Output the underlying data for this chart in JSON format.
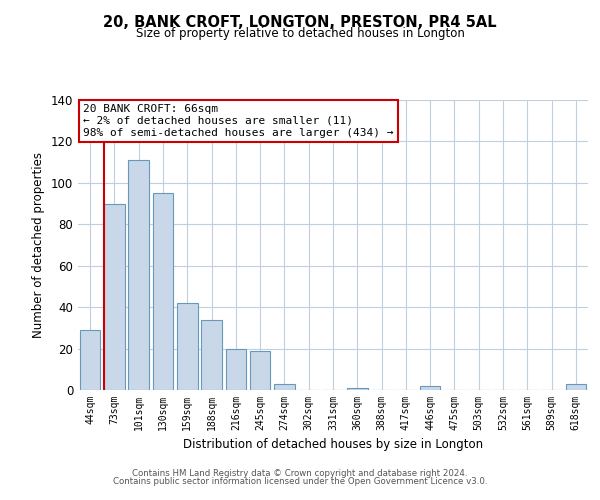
{
  "title": "20, BANK CROFT, LONGTON, PRESTON, PR4 5AL",
  "subtitle": "Size of property relative to detached houses in Longton",
  "xlabel": "Distribution of detached houses by size in Longton",
  "ylabel": "Number of detached properties",
  "bar_labels": [
    "44sqm",
    "73sqm",
    "101sqm",
    "130sqm",
    "159sqm",
    "188sqm",
    "216sqm",
    "245sqm",
    "274sqm",
    "302sqm",
    "331sqm",
    "360sqm",
    "388sqm",
    "417sqm",
    "446sqm",
    "475sqm",
    "503sqm",
    "532sqm",
    "561sqm",
    "589sqm",
    "618sqm"
  ],
  "bar_values": [
    29,
    90,
    111,
    95,
    42,
    34,
    20,
    19,
    3,
    0,
    0,
    1,
    0,
    0,
    2,
    0,
    0,
    0,
    0,
    0,
    3
  ],
  "bar_color": "#c8d8e8",
  "bar_edge_color": "#6699bb",
  "ylim": [
    0,
    140
  ],
  "yticks": [
    0,
    20,
    40,
    60,
    80,
    100,
    120,
    140
  ],
  "marker_line_color": "#cc0000",
  "annotation_title": "20 BANK CROFT: 66sqm",
  "annotation_line1": "← 2% of detached houses are smaller (11)",
  "annotation_line2": "98% of semi-detached houses are larger (434) →",
  "annotation_box_color": "#ffffff",
  "annotation_box_edge": "#cc0000",
  "footer_line1": "Contains HM Land Registry data © Crown copyright and database right 2024.",
  "footer_line2": "Contains public sector information licensed under the Open Government Licence v3.0.",
  "bg_color": "#ffffff",
  "grid_color": "#c0cfe0"
}
